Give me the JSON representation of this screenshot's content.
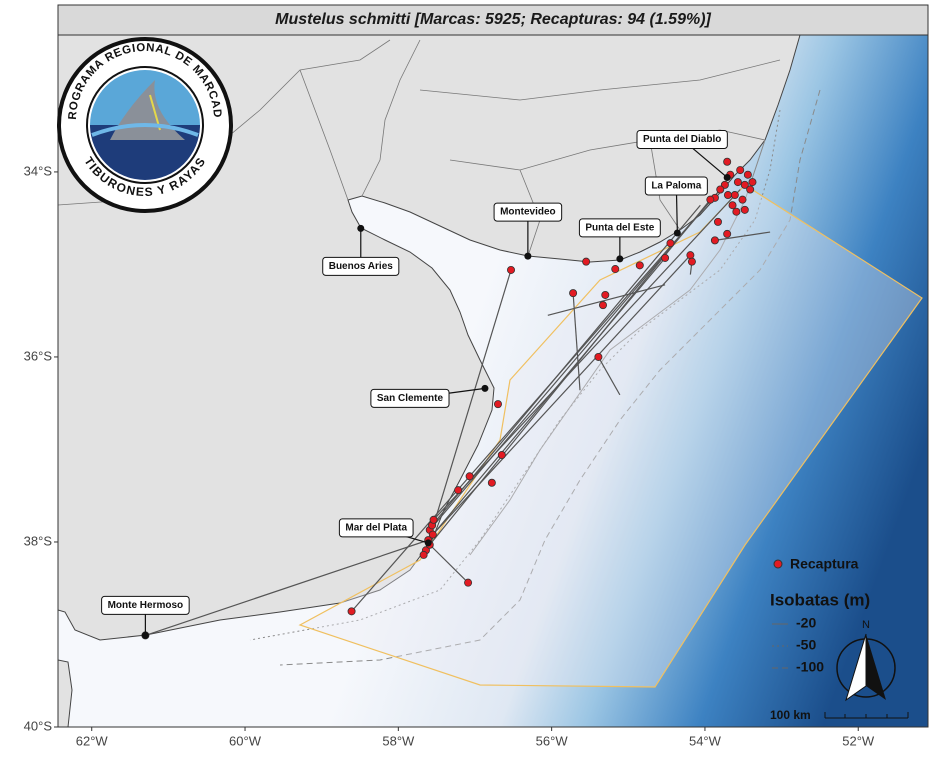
{
  "map": {
    "title": "Mustelus schmitti [Marcas: 5925; Recapturas: 94 (1.59%)]",
    "xlim": [
      -62.44,
      -51.09
    ],
    "ylim": [
      -40,
      -32.52
    ],
    "xticks": [
      {
        "value": -62,
        "label": "62°W"
      },
      {
        "value": -60,
        "label": "60°W"
      },
      {
        "value": -58,
        "label": "58°W"
      },
      {
        "value": -56,
        "label": "56°W"
      },
      {
        "value": -54,
        "label": "54°W"
      },
      {
        "value": -52,
        "label": "52°W"
      }
    ],
    "yticks": [
      {
        "value": -34,
        "label": "34°S"
      },
      {
        "value": -36,
        "label": "36°S"
      },
      {
        "value": -38,
        "label": "38°S"
      },
      {
        "value": -40,
        "label": "40°S"
      }
    ],
    "places": [
      {
        "name": "Buenos Aries",
        "lon": -58.49,
        "lat": -34.61
      },
      {
        "name": "Montevideo",
        "lon": -56.31,
        "lat": -34.91
      },
      {
        "name": "Punta del Este",
        "lon": -55.11,
        "lat": -34.94
      },
      {
        "name": "La Paloma",
        "lon": -54.36,
        "lat": -34.66
      },
      {
        "name": "Punta del Diablo",
        "lon": -53.71,
        "lat": -34.06
      },
      {
        "name": "San Clemente",
        "lon": -56.87,
        "lat": -36.34
      },
      {
        "name": "Mar del Plata",
        "lon": -57.61,
        "lat": -38.01
      },
      {
        "name": "Monte Hermoso",
        "lon": -61.3,
        "lat": -39.01
      }
    ],
    "tracks": [
      {
        "lon": [
          -57.59,
          -53.8
        ],
        "lat": [
          -37.87,
          -34.19
        ]
      },
      {
        "lon": [
          -57.56,
          -54.06
        ],
        "lat": [
          -37.82,
          -34.36
        ]
      },
      {
        "lon": [
          -57.54,
          -53.54
        ],
        "lat": [
          -37.76,
          -34.19
        ]
      },
      {
        "lon": [
          -57.59,
          -53.93
        ],
        "lat": [
          -38.03,
          -34.3
        ]
      },
      {
        "lon": [
          -57.61,
          -54.52
        ],
        "lat": [
          -37.98,
          -34.93
        ]
      },
      {
        "lon": [
          -57.55,
          -54.19
        ],
        "lat": [
          -37.92,
          -34.9
        ]
      },
      {
        "lon": [
          -57.64,
          -56.53
        ],
        "lat": [
          -38.09,
          -35.06
        ]
      },
      {
        "lon": [
          -61.3,
          -57.61
        ],
        "lat": [
          -39.01,
          -37.98
        ]
      },
      {
        "lon": [
          -58.61,
          -53.8
        ],
        "lat": [
          -38.75,
          -34.19
        ]
      },
      {
        "lon": [
          -57.09,
          -57.59
        ],
        "lat": [
          -38.44,
          -38.03
        ]
      },
      {
        "lon": [
          -56.05,
          -54.52
        ],
        "lat": [
          -35.55,
          -35.22
        ]
      },
      {
        "lon": [
          -53.15,
          -53.87
        ],
        "lat": [
          -34.65,
          -34.74
        ]
      },
      {
        "lon": [
          -55.11,
          -55.39
        ],
        "lat": [
          -36.41,
          -36.0
        ]
      },
      {
        "lon": [
          -55.72,
          -55.63
        ],
        "lat": [
          -35.31,
          -36.36
        ]
      },
      {
        "lon": [
          -54.19,
          -54.17
        ],
        "lat": [
          -35.11,
          -34.97
        ]
      }
    ],
    "recaptures": {
      "lon": [
        -53.67,
        -53.57,
        -53.48,
        -53.41,
        -53.74,
        -53.61,
        -53.51,
        -53.87,
        -53.8,
        -53.93,
        -53.44,
        -53.38,
        -53.54,
        -53.7,
        -53.64,
        -53.48,
        -53.59,
        -53.83,
        -53.71,
        -53.87,
        -53.71,
        -54.45,
        -54.52,
        -54.19,
        -54.17,
        -54.85,
        -55.17,
        -55.3,
        -55.33,
        -55.72,
        -55.55,
        -55.39,
        -56.53,
        -57.59,
        -57.56,
        -57.54,
        -57.61,
        -57.64,
        -57.67,
        -57.59,
        -57.55,
        -56.7,
        -57.07,
        -57.22,
        -56.78,
        -56.65,
        -57.09,
        -58.61,
        -61.3
      ],
      "lat": [
        -34.03,
        -34.11,
        -34.14,
        -34.19,
        -34.14,
        -34.25,
        -34.3,
        -34.28,
        -34.19,
        -34.3,
        -34.03,
        -34.11,
        -33.98,
        -34.25,
        -34.36,
        -34.41,
        -34.43,
        -34.54,
        -34.67,
        -34.74,
        -33.89,
        -34.77,
        -34.93,
        -34.9,
        -34.97,
        -35.01,
        -35.05,
        -35.33,
        -35.44,
        -35.31,
        -34.97,
        -36.0,
        -35.06,
        -37.87,
        -37.82,
        -37.76,
        -37.98,
        -38.09,
        -38.14,
        -38.03,
        -37.92,
        -36.51,
        -37.29,
        -37.44,
        -37.36,
        -37.06,
        -38.44,
        -38.75,
        -39.01
      ]
    },
    "legend": {
      "recapture": "Recaptura",
      "isobaths_title": "Isobatas (m)",
      "isobaths": [
        "-20",
        "-50",
        "-100"
      ]
    },
    "north": "N",
    "scale_bar": "100 km",
    "logo": {
      "top": "PROGRAMA REGIONAL DE MARCADO",
      "bottom": "TIBURONES Y RAYAS"
    }
  }
}
